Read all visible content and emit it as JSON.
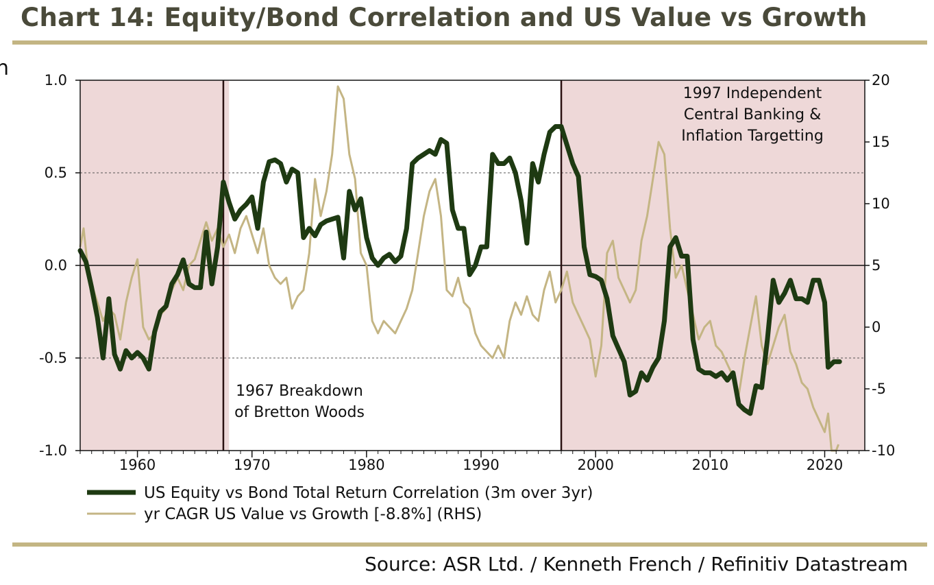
{
  "page": {
    "title": "Chart 14: Equity/Bond Correlation and US Value vs Growth",
    "source": "Source: ASR Ltd. / Kenneth French / Refinitiv Datastream",
    "edge_glyph": "n"
  },
  "chart_data": {
    "type": "line",
    "title": "Chart 14: Equity/Bond Correlation and US Value vs Growth",
    "xlim": [
      1955,
      2023.5
    ],
    "x_ticks": [
      1960,
      1970,
      1980,
      1990,
      2000,
      2010,
      2020
    ],
    "x_tick_labels": [
      "1960",
      "1970",
      "1980",
      "1990",
      "2000",
      "2010",
      "2020"
    ],
    "y_left": {
      "range": [
        -1.0,
        1.0
      ],
      "ticks": [
        1.0,
        0.5,
        0.0,
        -0.5,
        -1.0
      ],
      "tick_labels": [
        "1.0",
        "0.5",
        "0.0",
        "-0.5",
        "-1.0"
      ]
    },
    "y_right": {
      "range": [
        -10,
        20
      ],
      "ticks": [
        20,
        15,
        10,
        5,
        0,
        -5,
        -10
      ],
      "tick_labels": [
        "20",
        "15",
        "10",
        "5",
        "0",
        "-5",
        "-10"
      ]
    },
    "gridlines": [
      0.5,
      -0.5
    ],
    "zero_line": 0.0,
    "shaded_regions": [
      {
        "start": 1955,
        "end": 1968,
        "color": "#eed8d8"
      },
      {
        "start": 1997,
        "end": 2023.5,
        "color": "#eed8d8"
      }
    ],
    "vlines": [
      1967.5,
      1997
    ],
    "annotations": [
      {
        "lines": [
          "1967 Breakdown",
          "of Bretton Woods"
        ]
      },
      {
        "lines": [
          "1997 Independent",
          "Central Banking &",
          "Inflation Targetting"
        ]
      }
    ],
    "series": [
      {
        "name": "US Equity vs Bond Total Return Correlation (3m over 3yr)",
        "axis": "left",
        "color": "#1e3a12",
        "points": [
          [
            1955.0,
            0.08
          ],
          [
            1955.5,
            0.02
          ],
          [
            1956.0,
            -0.12
          ],
          [
            1956.5,
            -0.28
          ],
          [
            1957.0,
            -0.5
          ],
          [
            1957.5,
            -0.18
          ],
          [
            1958.0,
            -0.48
          ],
          [
            1958.5,
            -0.56
          ],
          [
            1959.0,
            -0.46
          ],
          [
            1959.5,
            -0.5
          ],
          [
            1960.0,
            -0.47
          ],
          [
            1960.5,
            -0.5
          ],
          [
            1961.0,
            -0.56
          ],
          [
            1961.5,
            -0.36
          ],
          [
            1962.0,
            -0.25
          ],
          [
            1962.5,
            -0.22
          ],
          [
            1963.0,
            -0.1
          ],
          [
            1963.5,
            -0.05
          ],
          [
            1964.0,
            0.03
          ],
          [
            1964.5,
            -0.1
          ],
          [
            1965.0,
            -0.12
          ],
          [
            1965.5,
            -0.12
          ],
          [
            1966.0,
            0.18
          ],
          [
            1966.5,
            -0.1
          ],
          [
            1967.0,
            0.1
          ],
          [
            1967.5,
            0.45
          ],
          [
            1968.0,
            0.34
          ],
          [
            1968.5,
            0.25
          ],
          [
            1969.0,
            0.3
          ],
          [
            1969.5,
            0.33
          ],
          [
            1970.0,
            0.37
          ],
          [
            1970.5,
            0.2
          ],
          [
            1971.0,
            0.45
          ],
          [
            1971.5,
            0.56
          ],
          [
            1972.0,
            0.57
          ],
          [
            1972.5,
            0.55
          ],
          [
            1973.0,
            0.45
          ],
          [
            1973.5,
            0.52
          ],
          [
            1974.0,
            0.5
          ],
          [
            1974.5,
            0.15
          ],
          [
            1975.0,
            0.2
          ],
          [
            1975.5,
            0.16
          ],
          [
            1976.0,
            0.22
          ],
          [
            1976.5,
            0.24
          ],
          [
            1977.0,
            0.25
          ],
          [
            1977.5,
            0.26
          ],
          [
            1978.0,
            0.04
          ],
          [
            1978.5,
            0.4
          ],
          [
            1979.0,
            0.3
          ],
          [
            1979.5,
            0.36
          ],
          [
            1980.0,
            0.15
          ],
          [
            1980.5,
            0.04
          ],
          [
            1981.0,
            0.0
          ],
          [
            1981.5,
            0.04
          ],
          [
            1982.0,
            0.06
          ],
          [
            1982.5,
            0.02
          ],
          [
            1983.0,
            0.05
          ],
          [
            1983.5,
            0.2
          ],
          [
            1984.0,
            0.55
          ],
          [
            1984.5,
            0.58
          ],
          [
            1985.0,
            0.6
          ],
          [
            1985.5,
            0.62
          ],
          [
            1986.0,
            0.6
          ],
          [
            1986.5,
            0.68
          ],
          [
            1987.0,
            0.66
          ],
          [
            1987.5,
            0.3
          ],
          [
            1988.0,
            0.2
          ],
          [
            1988.5,
            0.2
          ],
          [
            1989.0,
            -0.05
          ],
          [
            1989.5,
            0.0
          ],
          [
            1990.0,
            0.1
          ],
          [
            1990.5,
            0.1
          ],
          [
            1991.0,
            0.6
          ],
          [
            1991.5,
            0.55
          ],
          [
            1992.0,
            0.55
          ],
          [
            1992.5,
            0.58
          ],
          [
            1993.0,
            0.5
          ],
          [
            1993.5,
            0.35
          ],
          [
            1994.0,
            0.12
          ],
          [
            1994.5,
            0.55
          ],
          [
            1995.0,
            0.45
          ],
          [
            1995.5,
            0.6
          ],
          [
            1996.0,
            0.72
          ],
          [
            1996.5,
            0.75
          ],
          [
            1997.0,
            0.75
          ],
          [
            1997.5,
            0.65
          ],
          [
            1998.0,
            0.55
          ],
          [
            1998.5,
            0.48
          ],
          [
            1999.0,
            0.1
          ],
          [
            1999.5,
            -0.05
          ],
          [
            2000.0,
            -0.06
          ],
          [
            2000.5,
            -0.08
          ],
          [
            2001.0,
            -0.18
          ],
          [
            2001.5,
            -0.38
          ],
          [
            2002.0,
            -0.45
          ],
          [
            2002.5,
            -0.52
          ],
          [
            2003.0,
            -0.7
          ],
          [
            2003.5,
            -0.68
          ],
          [
            2004.0,
            -0.58
          ],
          [
            2004.5,
            -0.62
          ],
          [
            2005.0,
            -0.55
          ],
          [
            2005.5,
            -0.5
          ],
          [
            2006.0,
            -0.3
          ],
          [
            2006.5,
            0.1
          ],
          [
            2007.0,
            0.15
          ],
          [
            2007.5,
            0.05
          ],
          [
            2008.0,
            0.05
          ],
          [
            2008.5,
            -0.4
          ],
          [
            2009.0,
            -0.56
          ],
          [
            2009.5,
            -0.58
          ],
          [
            2010.0,
            -0.58
          ],
          [
            2010.5,
            -0.6
          ],
          [
            2011.0,
            -0.58
          ],
          [
            2011.5,
            -0.62
          ],
          [
            2012.0,
            -0.58
          ],
          [
            2012.5,
            -0.75
          ],
          [
            2013.0,
            -0.78
          ],
          [
            2013.5,
            -0.8
          ],
          [
            2014.0,
            -0.65
          ],
          [
            2014.5,
            -0.66
          ],
          [
            2015.0,
            -0.4
          ],
          [
            2015.5,
            -0.08
          ],
          [
            2016.0,
            -0.2
          ],
          [
            2016.5,
            -0.15
          ],
          [
            2017.0,
            -0.08
          ],
          [
            2017.5,
            -0.18
          ],
          [
            2018.0,
            -0.18
          ],
          [
            2018.5,
            -0.2
          ],
          [
            2019.0,
            -0.08
          ],
          [
            2019.5,
            -0.08
          ],
          [
            2020.0,
            -0.2
          ],
          [
            2020.3,
            -0.55
          ],
          [
            2020.8,
            -0.52
          ],
          [
            2021.3,
            -0.52
          ]
        ]
      },
      {
        "name": "yr CAGR US Value vs Growth [-8.8%] (RHS)",
        "axis": "right",
        "color": "#c4b584",
        "points": [
          [
            1955.0,
            6.5
          ],
          [
            1955.3,
            8.0
          ],
          [
            1955.7,
            4.5
          ],
          [
            1956.0,
            3.5
          ],
          [
            1956.5,
            2.0
          ],
          [
            1957.0,
            0.5
          ],
          [
            1957.5,
            1.5
          ],
          [
            1958.0,
            1.0
          ],
          [
            1958.5,
            -1.0
          ],
          [
            1959.0,
            2.0
          ],
          [
            1959.5,
            4.0
          ],
          [
            1960.0,
            5.5
          ],
          [
            1960.5,
            0.0
          ],
          [
            1961.0,
            -1.0
          ],
          [
            1961.5,
            -0.5
          ],
          [
            1962.0,
            1.0
          ],
          [
            1962.5,
            1.5
          ],
          [
            1963.0,
            3.0
          ],
          [
            1963.5,
            4.0
          ],
          [
            1964.0,
            3.0
          ],
          [
            1964.5,
            5.0
          ],
          [
            1965.0,
            5.5
          ],
          [
            1965.5,
            7.0
          ],
          [
            1966.0,
            8.5
          ],
          [
            1966.5,
            7.0
          ],
          [
            1967.0,
            8.0
          ],
          [
            1967.5,
            6.5
          ],
          [
            1968.0,
            7.5
          ],
          [
            1968.5,
            6.0
          ],
          [
            1969.0,
            8.0
          ],
          [
            1969.5,
            9.0
          ],
          [
            1970.0,
            7.5
          ],
          [
            1970.5,
            6.0
          ],
          [
            1971.0,
            8.0
          ],
          [
            1971.5,
            5.0
          ],
          [
            1972.0,
            4.0
          ],
          [
            1972.5,
            3.5
          ],
          [
            1973.0,
            4.0
          ],
          [
            1973.5,
            1.5
          ],
          [
            1974.0,
            2.5
          ],
          [
            1974.5,
            3.0
          ],
          [
            1975.0,
            6.0
          ],
          [
            1975.5,
            12.0
          ],
          [
            1976.0,
            9.0
          ],
          [
            1976.5,
            11.0
          ],
          [
            1977.0,
            14.0
          ],
          [
            1977.5,
            19.5
          ],
          [
            1978.0,
            18.5
          ],
          [
            1978.5,
            14.0
          ],
          [
            1979.0,
            12.0
          ],
          [
            1979.5,
            6.0
          ],
          [
            1980.0,
            5.0
          ],
          [
            1980.5,
            0.5
          ],
          [
            1981.0,
            -0.5
          ],
          [
            1981.5,
            0.5
          ],
          [
            1982.0,
            0.0
          ],
          [
            1982.5,
            -0.5
          ],
          [
            1983.0,
            0.5
          ],
          [
            1983.5,
            1.5
          ],
          [
            1984.0,
            3.0
          ],
          [
            1984.5,
            6.0
          ],
          [
            1985.0,
            9.0
          ],
          [
            1985.5,
            11.0
          ],
          [
            1986.0,
            12.0
          ],
          [
            1986.5,
            9.0
          ],
          [
            1987.0,
            3.0
          ],
          [
            1987.5,
            2.5
          ],
          [
            1988.0,
            4.0
          ],
          [
            1988.5,
            2.0
          ],
          [
            1989.0,
            1.5
          ],
          [
            1989.5,
            -0.5
          ],
          [
            1990.0,
            -1.5
          ],
          [
            1990.5,
            -2.0
          ],
          [
            1991.0,
            -2.5
          ],
          [
            1991.5,
            -1.5
          ],
          [
            1992.0,
            -2.5
          ],
          [
            1992.5,
            0.5
          ],
          [
            1993.0,
            2.0
          ],
          [
            1993.5,
            1.0
          ],
          [
            1994.0,
            2.5
          ],
          [
            1994.5,
            1.0
          ],
          [
            1995.0,
            0.5
          ],
          [
            1995.5,
            3.0
          ],
          [
            1996.0,
            4.5
          ],
          [
            1996.5,
            2.0
          ],
          [
            1997.0,
            3.0
          ],
          [
            1997.5,
            4.5
          ],
          [
            1998.0,
            2.0
          ],
          [
            1998.5,
            1.0
          ],
          [
            1999.0,
            0.0
          ],
          [
            1999.5,
            -1.0
          ],
          [
            2000.0,
            -4.0
          ],
          [
            2000.5,
            -1.5
          ],
          [
            2001.0,
            6.0
          ],
          [
            2001.5,
            7.0
          ],
          [
            2002.0,
            4.0
          ],
          [
            2002.5,
            3.0
          ],
          [
            2003.0,
            2.0
          ],
          [
            2003.5,
            3.0
          ],
          [
            2004.0,
            7.0
          ],
          [
            2004.5,
            9.0
          ],
          [
            2005.0,
            12.0
          ],
          [
            2005.5,
            15.0
          ],
          [
            2006.0,
            14.0
          ],
          [
            2006.5,
            8.0
          ],
          [
            2007.0,
            4.0
          ],
          [
            2007.5,
            5.0
          ],
          [
            2008.0,
            3.0
          ],
          [
            2008.5,
            1.0
          ],
          [
            2009.0,
            -1.0
          ],
          [
            2009.5,
            0.0
          ],
          [
            2010.0,
            0.5
          ],
          [
            2010.5,
            -1.5
          ],
          [
            2011.0,
            -2.0
          ],
          [
            2011.5,
            -3.0
          ],
          [
            2012.0,
            -4.0
          ],
          [
            2012.5,
            -5.5
          ],
          [
            2013.0,
            -2.5
          ],
          [
            2013.5,
            0.0
          ],
          [
            2014.0,
            2.5
          ],
          [
            2014.5,
            -1.5
          ],
          [
            2015.0,
            -3.0
          ],
          [
            2015.5,
            -1.5
          ],
          [
            2016.0,
            0.0
          ],
          [
            2016.5,
            1.0
          ],
          [
            2017.0,
            -2.0
          ],
          [
            2017.5,
            -3.0
          ],
          [
            2018.0,
            -4.5
          ],
          [
            2018.5,
            -5.0
          ],
          [
            2019.0,
            -6.5
          ],
          [
            2019.5,
            -7.5
          ],
          [
            2020.0,
            -8.5
          ],
          [
            2020.3,
            -7.0
          ],
          [
            2020.6,
            -10.0
          ],
          [
            2021.0,
            -10.0
          ],
          [
            2021.2,
            -9.5
          ]
        ]
      }
    ]
  }
}
